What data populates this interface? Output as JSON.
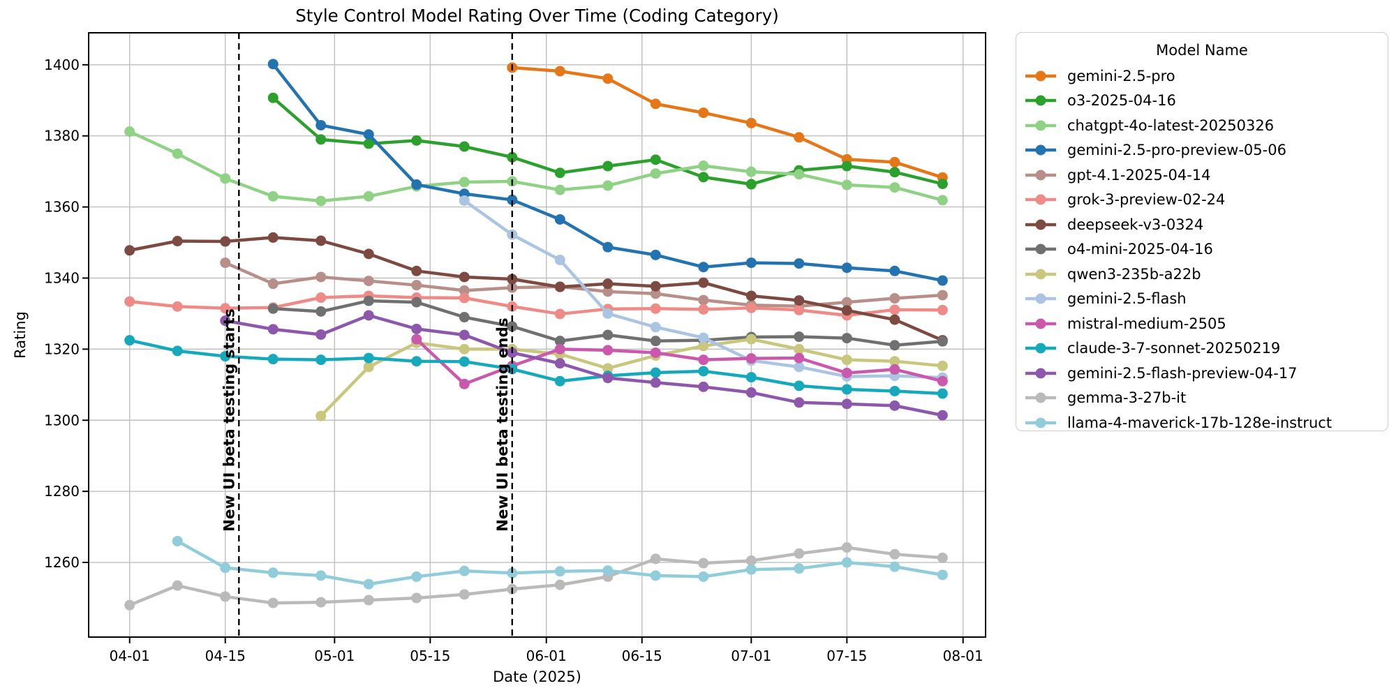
{
  "figure": {
    "title": "Style Control Model Rating Over Time (Coding Category)",
    "xlabel": "Date (2025)",
    "ylabel": "Rating"
  },
  "legend": {
    "title": "Model Name"
  },
  "chart_data": {
    "type": "line",
    "title": "Style Control Model Rating Over Time (Coding Category)",
    "xlabel": "Date (2025)",
    "ylabel": "Rating",
    "grid": true,
    "legend_position": "right-outside",
    "x_unit": "days since 2025-04-01, weekly points",
    "x": [
      0,
      7,
      14,
      21,
      28,
      35,
      42,
      49,
      56,
      63,
      70,
      77,
      84,
      91,
      98,
      105,
      112,
      119
    ],
    "x_dates": [
      "04-01",
      "04-08",
      "04-15",
      "04-22",
      "04-29",
      "05-06",
      "05-13",
      "05-20",
      "05-27",
      "06-03",
      "06-10",
      "06-17",
      "06-24",
      "07-01",
      "07-08",
      "07-15",
      "07-22",
      "07-29"
    ],
    "xlim_days": [
      -6,
      125.3
    ],
    "ylim": [
      1239,
      1409
    ],
    "x_ticks": [
      {
        "day": 0,
        "label": "04-01"
      },
      {
        "day": 14,
        "label": "04-15"
      },
      {
        "day": 30,
        "label": "05-01"
      },
      {
        "day": 44,
        "label": "05-15"
      },
      {
        "day": 61,
        "label": "06-01"
      },
      {
        "day": 75,
        "label": "06-15"
      },
      {
        "day": 91,
        "label": "07-01"
      },
      {
        "day": 105,
        "label": "07-15"
      },
      {
        "day": 122,
        "label": "08-01"
      }
    ],
    "y_ticks": [
      1260,
      1280,
      1300,
      1320,
      1340,
      1360,
      1380,
      1400
    ],
    "annotations": [
      {
        "day": 16,
        "label": "New UI beta testing starts",
        "color": "#000000",
        "style": "dashed-vertical"
      },
      {
        "day": 56,
        "label": "New UI beta testing ends",
        "color": "#000000",
        "style": "dashed-vertical"
      }
    ],
    "grid_color": "#bfbfbf",
    "series": [
      {
        "name": "gemini-2.5-pro",
        "color": "#e57718",
        "values": [
          null,
          null,
          null,
          null,
          null,
          null,
          null,
          null,
          1399.2,
          1398.2,
          1396.1,
          1389.0,
          1386.5,
          1383.6,
          1379.6,
          1373.4,
          1372.6,
          1368.3
        ]
      },
      {
        "name": "o3-2025-04-16",
        "color": "#2ca02c",
        "values": [
          null,
          null,
          null,
          1390.7,
          1379.0,
          1377.8,
          1378.7,
          1377.0,
          1374.0,
          1369.6,
          1371.5,
          1373.3,
          1368.4,
          1366.4,
          1370.3,
          1371.5,
          1369.8,
          1366.5
        ]
      },
      {
        "name": "chatgpt-4o-latest-20250326",
        "color": "#8fd185",
        "values": [
          1381.2,
          1375.0,
          1368.0,
          1363.0,
          1361.7,
          1363.0,
          1365.8,
          1367.0,
          1367.2,
          1364.8,
          1366.0,
          1369.4,
          1371.6,
          1369.9,
          1369.2,
          1366.2,
          1365.5,
          1361.9
        ]
      },
      {
        "name": "gemini-2.5-pro-preview-05-06",
        "color": "#2273b0",
        "values": [
          null,
          null,
          null,
          1400.2,
          1383.0,
          1380.4,
          1366.3,
          1363.7,
          1362.0,
          1356.5,
          1348.7,
          1346.5,
          1343.1,
          1344.3,
          1344.1,
          1342.9,
          1342.0,
          1339.3
        ]
      },
      {
        "name": "gpt-4.1-2025-04-14",
        "color": "#b78f88",
        "values": [
          null,
          null,
          1344.3,
          1338.4,
          1340.3,
          1339.2,
          1338.0,
          1336.5,
          1337.3,
          1337.6,
          1336.2,
          1335.6,
          1333.8,
          1332.4,
          1332.1,
          1333.2,
          1334.3,
          1335.2
        ]
      },
      {
        "name": "grok-3-preview-02-24",
        "color": "#ee8b87",
        "values": [
          1333.4,
          1332.0,
          1331.5,
          1331.7,
          1334.5,
          1335.0,
          1334.5,
          1334.4,
          1332.0,
          1329.9,
          1331.3,
          1331.4,
          1331.2,
          1331.6,
          1331.0,
          1329.5,
          1331.1,
          1331.0
        ]
      },
      {
        "name": "deepseek-v3-0324",
        "color": "#7c4a40",
        "values": [
          1347.8,
          1350.4,
          1350.3,
          1351.4,
          1350.5,
          1346.8,
          1342.0,
          1340.3,
          1339.7,
          1337.5,
          1338.4,
          1337.7,
          1338.7,
          1335.0,
          1333.7,
          1330.9,
          1328.3,
          1322.5
        ]
      },
      {
        "name": "o4-mini-2025-04-16",
        "color": "#707070",
        "values": [
          null,
          null,
          null,
          1331.4,
          1330.6,
          1333.6,
          1333.2,
          1329.0,
          1326.4,
          1322.3,
          1324.0,
          1322.3,
          1322.5,
          1323.4,
          1323.5,
          1323.1,
          1321.1,
          1322.2
        ]
      },
      {
        "name": "qwen3-235b-a22b",
        "color": "#c9c67d",
        "values": [
          null,
          null,
          null,
          null,
          1301.2,
          1315.0,
          1321.8,
          1320.0,
          1320.0,
          1318.6,
          1314.6,
          1318.2,
          1320.9,
          1322.8,
          1320.0,
          1317.0,
          1316.6,
          1315.3
        ]
      },
      {
        "name": "gemini-2.5-flash",
        "color": "#aac4e2",
        "values": [
          null,
          null,
          null,
          null,
          null,
          null,
          null,
          1361.8,
          1352.2,
          1345.1,
          1330.0,
          1326.2,
          1323.2,
          1316.8,
          1315.0,
          1312.3,
          1312.5,
          1312.0
        ]
      },
      {
        "name": "mistral-medium-2505",
        "color": "#ca58ad",
        "values": [
          null,
          null,
          null,
          null,
          null,
          null,
          1322.8,
          1310.2,
          1315.3,
          1320.0,
          1319.7,
          1319.0,
          1317.0,
          1317.4,
          1317.5,
          1313.3,
          1314.3,
          1311.0
        ]
      },
      {
        "name": "claude-3-7-sonnet-20250219",
        "color": "#16a9bb",
        "values": [
          1322.5,
          1319.5,
          1318.0,
          1317.2,
          1317.0,
          1317.5,
          1316.6,
          1316.5,
          1314.4,
          1311.0,
          1312.5,
          1313.4,
          1313.8,
          1312.1,
          1309.7,
          1308.7,
          1308.2,
          1307.5
        ]
      },
      {
        "name": "gemini-2.5-flash-preview-04-17",
        "color": "#8d57ab",
        "values": [
          null,
          null,
          1328.0,
          1325.6,
          1324.1,
          1329.5,
          1325.7,
          1324.0,
          1319.0,
          1316.0,
          1311.9,
          1310.6,
          1309.4,
          1307.8,
          1305.0,
          1304.6,
          1304.1,
          1301.4
        ]
      },
      {
        "name": "gemma-3-27b-it",
        "color": "#bababa",
        "values": [
          1248.0,
          1253.5,
          1250.4,
          1248.6,
          1248.8,
          1249.4,
          1250.0,
          1251.0,
          1252.5,
          1253.7,
          1256.0,
          1261.0,
          1259.8,
          1260.5,
          1262.5,
          1264.2,
          1262.3,
          1261.3
        ]
      },
      {
        "name": "llama-4-maverick-17b-128e-instruct",
        "color": "#90ccd9",
        "values": [
          null,
          1266.0,
          1258.5,
          1257.1,
          1256.3,
          1253.9,
          1256.0,
          1257.6,
          1257.0,
          1257.5,
          1257.7,
          1256.3,
          1256.0,
          1258.0,
          1258.3,
          1260.0,
          1258.8,
          1256.5
        ]
      }
    ]
  }
}
